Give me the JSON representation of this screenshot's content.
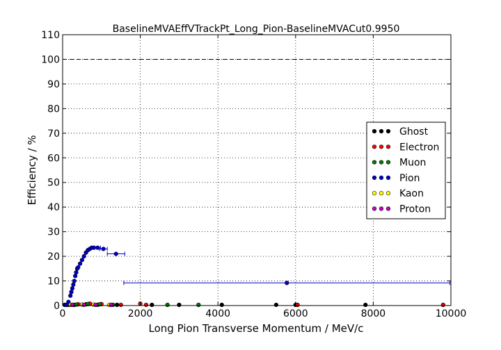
{
  "chart_data": {
    "type": "scatter",
    "title": "BaselineMVAEffVTrackPt_Long_Pion-BaselineMVACut0.9950",
    "xlabel": "Long Pion Transverse Momentum / MeV/c",
    "ylabel": "Efficiency / %",
    "xlim": [
      0,
      10000
    ],
    "ylim": [
      0,
      110
    ],
    "xticks": [
      0,
      2000,
      4000,
      6000,
      8000,
      10000
    ],
    "yticks": [
      0,
      10,
      20,
      30,
      40,
      50,
      60,
      70,
      80,
      90,
      100,
      110
    ],
    "grid": true,
    "reference_line": {
      "y": 100,
      "style": "dashed"
    },
    "legend_position": "center-right",
    "series": [
      {
        "name": "Ghost",
        "color": "#000000",
        "x": [
          100,
          300,
          600,
          900,
          1400,
          2300,
          3000,
          4100,
          5500,
          6000,
          7800
        ],
        "y": [
          0,
          0.2,
          0.5,
          0.3,
          0.2,
          0.1,
          0.1,
          0.1,
          0.3,
          0.1,
          0.1
        ]
      },
      {
        "name": "Electron",
        "color": "#ff0000",
        "x": [
          150,
          400,
          700,
          1000,
          1500,
          2000,
          2150,
          6050,
          9800
        ],
        "y": [
          0.2,
          0.5,
          0.8,
          0.6,
          0.3,
          0.8,
          0.3,
          0.2,
          0.1
        ]
      },
      {
        "name": "Muon",
        "color": "#008000",
        "x": [
          120,
          350,
          650,
          950,
          1300,
          2700,
          3500
        ],
        "y": [
          0.2,
          0.4,
          0.6,
          0.5,
          0.3,
          0.1,
          0.1
        ]
      },
      {
        "name": "Pion",
        "color": "#0000cc",
        "x": [
          50,
          100,
          150,
          200,
          225,
          250,
          275,
          300,
          325,
          350,
          375,
          400,
          450,
          500,
          550,
          600,
          650,
          700,
          750,
          800,
          900,
          1050,
          1375,
          5775
        ],
        "y": [
          0.1,
          0.2,
          1.5,
          4,
          5.5,
          7,
          8.5,
          10,
          12,
          13.5,
          15,
          15.5,
          17,
          18.5,
          20,
          21.5,
          22.5,
          23,
          23.5,
          23.5,
          23.5,
          23,
          21,
          9.2
        ],
        "xerr": [
          null,
          null,
          null,
          null,
          null,
          null,
          null,
          null,
          null,
          null,
          null,
          null,
          null,
          null,
          null,
          null,
          null,
          null,
          null,
          null,
          75,
          100,
          225,
          4200
        ]
      },
      {
        "name": "Kaon",
        "color": "#ffff00",
        "x": [
          200,
          500,
          800,
          1200
        ],
        "y": [
          0.2,
          0.4,
          0.4,
          0.3
        ]
      },
      {
        "name": "Proton",
        "color": "#cc00cc",
        "x": [
          250,
          550,
          850,
          1250
        ],
        "y": [
          0.1,
          0.3,
          0.3,
          0.2
        ]
      }
    ]
  }
}
